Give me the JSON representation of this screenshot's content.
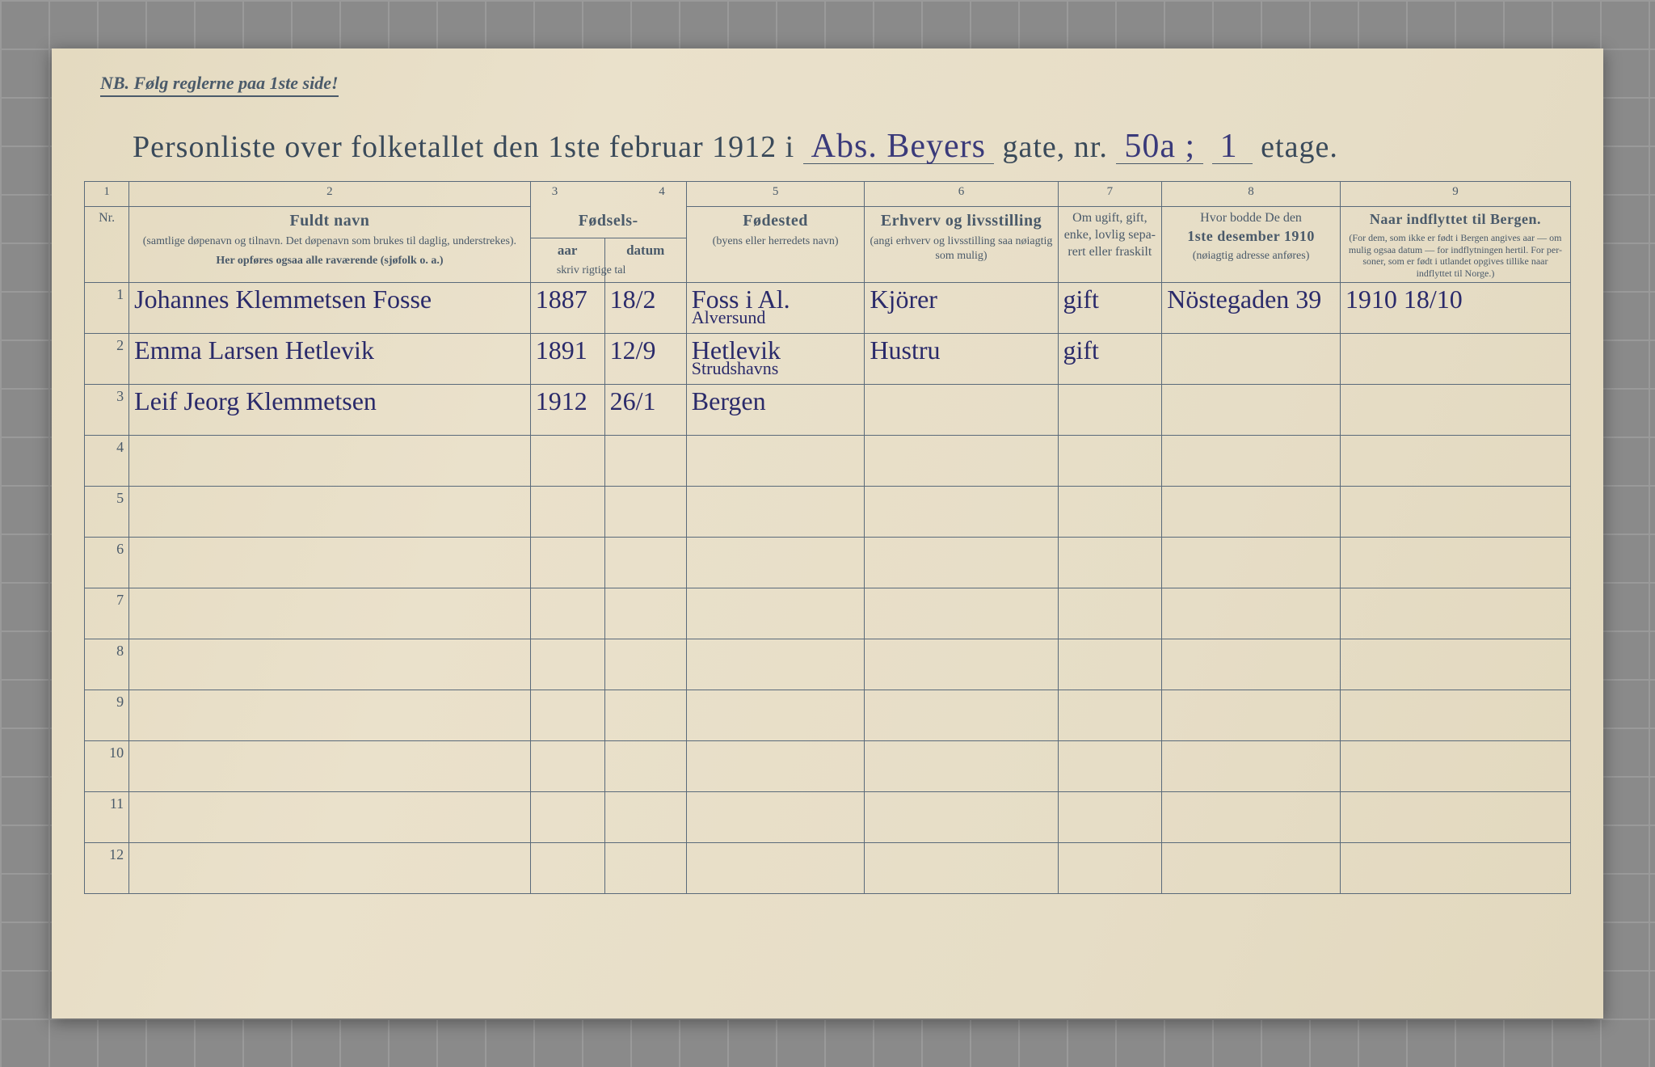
{
  "nb_text": "NB.   Følg reglerne paa 1ste side!",
  "title": {
    "prefix": "Personliste over folketallet den 1ste februar 1912 i",
    "street_hand": "Abs. Beyers",
    "gate_label": "gate, nr.",
    "number_hand": "50a ;",
    "etage_label": "etage.",
    "etage_hand": "1"
  },
  "columns": {
    "numbers": [
      "1",
      "2",
      "3",
      "4",
      "5",
      "6",
      "7",
      "8",
      "9"
    ],
    "nr_label": "Nr.",
    "c2": {
      "main": "Fuldt navn",
      "sub1": "(samtlige døpenavn og tilnavn. Det døpenavn som brukes til daglig, understrekes).",
      "sub2": "Her opføres ogsaa alle  raværende (sjøfolk o. a.)"
    },
    "c34": {
      "main": "Fødsels-",
      "aar": "aar",
      "datum": "datum",
      "sub": "skriv rigtige tal"
    },
    "c5": {
      "main": "Fødested",
      "sub": "(byens eller herredets navn)"
    },
    "c6": {
      "main": "Erhverv og livsstilling",
      "sub": "(angi erhverv og livsstilling saa nøiagtig som mulig)"
    },
    "c7": {
      "sub": "Om ugift, gift, enke, lovlig sepa-rert eller fraskilt"
    },
    "c8": {
      "line1": "Hvor bodde De den",
      "line2": "1ste desember 1910",
      "sub": "(nøiagtig adresse anføres)"
    },
    "c9": {
      "main": "Naar indflyttet til Bergen.",
      "sub": "(For dem, som ikke er født i Bergen angives aar — om mulig ogsaa datum — for indflytningen hertil. For per-soner, som er født i utlandet opgives tillike naar indflyttet til Norge.)"
    }
  },
  "rows": [
    {
      "nr": "1",
      "name": "Johannes   Klemmetsen Fosse",
      "aar": "1887",
      "datum": "18/2",
      "sted": "Foss i Al.",
      "sted_sub": "Alversund",
      "erhverv": "Kjörer",
      "status": "gift",
      "prev": "Nöstegaden 39",
      "indfl": "1910   18/10"
    },
    {
      "nr": "2",
      "name": "Emma   Larsen   Hetlevik",
      "aar": "1891",
      "datum": "12/9",
      "sted": "Hetlevik",
      "sted_sub": "Strudshavns",
      "erhverv": "Hustru",
      "status": "gift",
      "prev": "",
      "indfl": ""
    },
    {
      "nr": "3",
      "name": "Leif  Jeorg   Klemmetsen",
      "aar": "1912",
      "datum": "26/1",
      "sted": "Bergen",
      "sted_sub": "",
      "erhverv": "",
      "status": "",
      "prev": "",
      "indfl": ""
    },
    {
      "nr": "4"
    },
    {
      "nr": "5"
    },
    {
      "nr": "6"
    },
    {
      "nr": "7"
    },
    {
      "nr": "8"
    },
    {
      "nr": "9"
    },
    {
      "nr": "10"
    },
    {
      "nr": "11"
    },
    {
      "nr": "12"
    }
  ]
}
